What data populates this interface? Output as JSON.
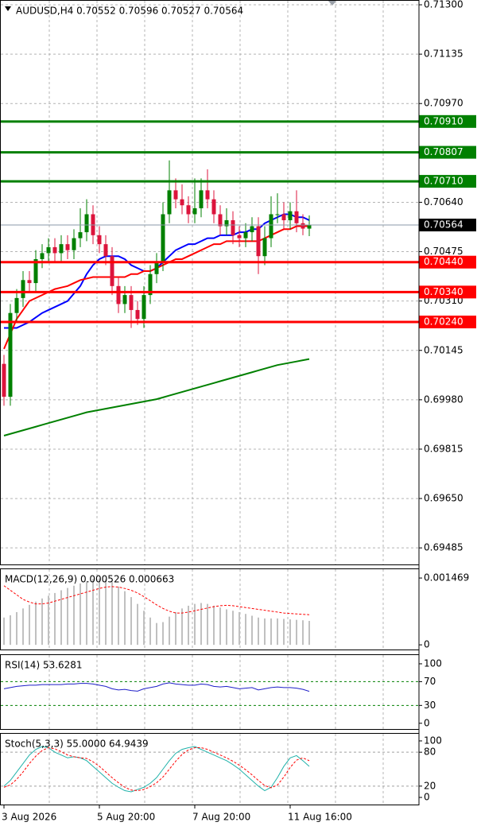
{
  "chart_data": [
    {
      "type": "candlestick",
      "title": "AUDUSD,H4  0.70552 0.70596 0.70527 0.70564",
      "categories": [
        "3 Aug 2026",
        null,
        null,
        null,
        null,
        null,
        null,
        null,
        null,
        null,
        null,
        null,
        null,
        null,
        null,
        "5 Aug 20:00",
        null,
        null,
        null,
        null,
        null,
        null,
        null,
        null,
        null,
        null,
        null,
        null,
        null,
        null,
        "7 Aug 20:00",
        null,
        null,
        null,
        null,
        null,
        null,
        null,
        null,
        null,
        null,
        null,
        null,
        null,
        null,
        "11 Aug 16:00",
        null,
        null,
        null
      ],
      "open": [
        0.701,
        0.6999,
        0.7027,
        0.7032,
        0.7038,
        0.7037,
        0.7045,
        0.7047,
        0.7049,
        0.7047,
        0.705,
        0.7048,
        0.7052,
        0.7054,
        0.706,
        0.7053,
        0.705,
        0.7046,
        0.7036,
        0.703,
        0.7033,
        0.7028,
        0.7025,
        0.7033,
        0.704,
        0.7044,
        0.706,
        0.7068,
        0.7065,
        0.7063,
        0.706,
        0.7062,
        0.7068,
        0.7065,
        0.706,
        0.7056,
        0.7058,
        0.7053,
        0.7052,
        0.7054,
        0.7056,
        0.7046,
        0.7052,
        0.706,
        0.706,
        0.7058,
        0.7061,
        0.7057,
        0.70552
      ],
      "high": [
        0.7013,
        0.703,
        0.7035,
        0.7041,
        0.7041,
        0.7048,
        0.705,
        0.7052,
        0.7052,
        0.7053,
        0.7053,
        0.7055,
        0.7062,
        0.7065,
        0.7063,
        0.7056,
        0.7053,
        0.7049,
        0.7039,
        0.7036,
        0.7036,
        0.7031,
        0.7036,
        0.7043,
        0.7047,
        0.7064,
        0.7078,
        0.7072,
        0.707,
        0.7066,
        0.7072,
        0.7072,
        0.7075,
        0.7068,
        0.7063,
        0.7062,
        0.7061,
        0.7056,
        0.7057,
        0.7059,
        0.7059,
        0.7056,
        0.7066,
        0.7067,
        0.7064,
        0.7064,
        0.7068,
        0.706,
        0.70596
      ],
      "low": [
        0.6996,
        0.6996,
        0.7024,
        0.7029,
        0.7034,
        0.7034,
        0.7042,
        0.7044,
        0.7044,
        0.7044,
        0.7045,
        0.7045,
        0.7049,
        0.7051,
        0.705,
        0.7047,
        0.7043,
        0.7033,
        0.7027,
        0.7027,
        0.7022,
        0.7023,
        0.7022,
        0.703,
        0.7037,
        0.7041,
        0.7057,
        0.7062,
        0.706,
        0.7057,
        0.7057,
        0.7059,
        0.7062,
        0.7057,
        0.7053,
        0.7053,
        0.705,
        0.7049,
        0.7049,
        0.7051,
        0.704,
        0.7043,
        0.7049,
        0.7057,
        0.7055,
        0.7055,
        0.7054,
        0.7053,
        0.70527
      ],
      "close": [
        0.6999,
        0.7027,
        0.7032,
        0.7038,
        0.7037,
        0.7045,
        0.7047,
        0.7049,
        0.7047,
        0.705,
        0.7048,
        0.7052,
        0.7054,
        0.706,
        0.7053,
        0.705,
        0.7046,
        0.7036,
        0.703,
        0.7033,
        0.7028,
        0.7025,
        0.7033,
        0.704,
        0.7044,
        0.706,
        0.7068,
        0.7065,
        0.7063,
        0.706,
        0.7062,
        0.7068,
        0.7065,
        0.706,
        0.7056,
        0.7058,
        0.7053,
        0.7052,
        0.7054,
        0.7056,
        0.7046,
        0.7052,
        0.706,
        0.706,
        0.7058,
        0.7061,
        0.7057,
        0.70552,
        0.70564
      ],
      "up_color": "#008000",
      "down_color": "#dc143c",
      "series": [
        {
          "color": "#008000",
          "values": [
            0.6986,
            0.69866,
            0.69872,
            0.69878,
            0.69884,
            0.6989,
            0.69896,
            0.69902,
            0.69908,
            0.69914,
            0.6992,
            0.69926,
            0.69932,
            0.69938,
            0.69942,
            0.69946,
            0.6995,
            0.69954,
            0.69958,
            0.69962,
            0.69966,
            0.6997,
            0.69974,
            0.69978,
            0.69982,
            0.69988,
            0.69994,
            0.7,
            0.70006,
            0.70012,
            0.70018,
            0.70024,
            0.7003,
            0.70036,
            0.70042,
            0.70048,
            0.70054,
            0.7006,
            0.70066,
            0.70072,
            0.70078,
            0.70084,
            0.7009,
            0.70096,
            0.701,
            0.70104,
            0.70108,
            0.70112,
            0.70116
          ]
        },
        {
          "color": "#0000ff",
          "values": [
            0.7022,
            0.7022,
            0.7022,
            0.7023,
            0.7024,
            0.70255,
            0.7027,
            0.7028,
            0.7029,
            0.703,
            0.7031,
            0.70335,
            0.7036,
            0.704,
            0.7043,
            0.7045,
            0.7046,
            0.7046,
            0.7046,
            0.7045,
            0.7043,
            0.7042,
            0.7041,
            0.7041,
            0.7042,
            0.7044,
            0.7046,
            0.7048,
            0.7049,
            0.705,
            0.705,
            0.7051,
            0.7052,
            0.7052,
            0.7053,
            0.7053,
            0.7053,
            0.7054,
            0.7054,
            0.7055,
            0.7055,
            0.7057,
            0.7058,
            0.7059,
            0.706,
            0.706,
            0.7059,
            0.7059,
            0.7058
          ]
        },
        {
          "color": "#ff0000",
          "values": [
            0.7015,
            0.702,
            0.7025,
            0.7028,
            0.7031,
            0.7032,
            0.7033,
            0.7034,
            0.7035,
            0.70355,
            0.7036,
            0.7037,
            0.7038,
            0.70385,
            0.7039,
            0.7039,
            0.7039,
            0.7039,
            0.7039,
            0.7039,
            0.704,
            0.704,
            0.7041,
            0.7041,
            0.7042,
            0.7043,
            0.7044,
            0.7045,
            0.7045,
            0.7046,
            0.7047,
            0.7048,
            0.7049,
            0.705,
            0.705,
            0.7051,
            0.7051,
            0.7051,
            0.7051,
            0.7051,
            0.7051,
            0.7052,
            0.7053,
            0.7054,
            0.7055,
            0.7055,
            0.7056,
            0.7056,
            0.7056
          ]
        }
      ],
      "levels": [
        {
          "value": 0.7091,
          "label": "0.70910",
          "color": "#008000"
        },
        {
          "value": 0.70807,
          "color": "#008000"
        },
        {
          "value": 0.7071,
          "label": "0.70710",
          "color": "#008000"
        },
        {
          "value": 0.7044,
          "label": "0.70440",
          "color": "#ff0000"
        },
        {
          "value": 0.7034,
          "label": "0.70340",
          "color": "#ff0000"
        },
        {
          "value": 0.7024,
          "label": "0.70240",
          "color": "#ff0000"
        }
      ],
      "last": 0.70564,
      "ylim": [
        0.69427,
        0.71316
      ],
      "yticks": [
        {
          "value": 0.713,
          "label": "0.71300"
        },
        0.71135,
        {
          "value": 0.7097,
          "label": "0.70970"
        },
        {
          "value": 0.7064,
          "label": "0.70640"
        },
        0.70475,
        {
          "value": 0.7031,
          "label": "0.70310"
        },
        0.70145,
        {
          "value": 0.6998,
          "label": "0.69980"
        },
        0.69815,
        {
          "value": 0.6965,
          "label": "0.69650"
        },
        0.69485
      ],
      "grid": true
    },
    {
      "type": "bar",
      "title": "MACD(12,26,9) 0.000526 0.000663",
      "color": "#c0c0c0",
      "values": [
        0.0006,
        0.00065,
        0.00072,
        0.0008,
        0.00088,
        0.00095,
        0.00102,
        0.00108,
        0.00114,
        0.0012,
        0.00125,
        0.0013,
        0.00135,
        0.0014,
        0.00145,
        0.00146,
        0.00144,
        0.00138,
        0.00128,
        0.00118,
        0.00105,
        0.0009,
        0.00075,
        0.0006,
        0.00048,
        0.0005,
        0.00062,
        0.00072,
        0.0008,
        0.00086,
        0.0009,
        0.00092,
        0.0009,
        0.00086,
        0.00082,
        0.00078,
        0.00075,
        0.00072,
        0.00068,
        0.00064,
        0.0006,
        0.00058,
        0.00058,
        0.00058,
        0.00057,
        0.00056,
        0.00055,
        0.00054,
        0.000526
      ],
      "series": [
        {
          "color": "#ff0000",
          "dashed": true,
          "values": [
            0.0013,
            0.0012,
            0.0011,
            0.001,
            0.00094,
            0.0009,
            0.0009,
            0.00092,
            0.00096,
            0.001,
            0.00104,
            0.00108,
            0.00112,
            0.00116,
            0.0012,
            0.00124,
            0.00127,
            0.00128,
            0.00127,
            0.00124,
            0.0012,
            0.00114,
            0.00106,
            0.00097,
            0.00088,
            0.0008,
            0.00074,
            0.0007,
            0.0007,
            0.00072,
            0.00075,
            0.00078,
            0.00081,
            0.00084,
            0.00086,
            0.00087,
            0.00086,
            0.00084,
            0.00082,
            0.0008,
            0.00078,
            0.00076,
            0.00074,
            0.00072,
            0.0007,
            0.00069,
            0.00068,
            0.00067,
            0.000663
          ]
        }
      ],
      "ylim": [
        -0.00012,
        0.00168
      ],
      "yticks": [
        0.001469,
        0
      ]
    },
    {
      "type": "line",
      "title": "RSI(14) 53.6281",
      "series": [
        {
          "color": "#1e1ec8",
          "values": [
            58,
            60,
            62,
            63,
            64,
            64,
            65,
            65,
            65,
            65,
            66,
            66,
            67,
            67,
            66,
            64,
            62,
            58,
            56,
            57,
            55,
            54,
            58,
            60,
            62,
            66,
            68,
            66,
            65,
            64,
            64,
            66,
            65,
            62,
            61,
            62,
            60,
            58,
            59,
            60,
            56,
            58,
            60,
            61,
            60,
            60,
            59,
            57,
            53.6281
          ]
        }
      ],
      "levels": [
        70,
        30
      ],
      "level_color": "#008000",
      "ylim": [
        -11,
        116
      ],
      "yticks": [
        100,
        70,
        30,
        0
      ]
    },
    {
      "type": "line",
      "title": "Stoch(5,3,3) 55.0000 64.9439",
      "series": [
        {
          "color": "#20b2aa",
          "values": [
            20,
            30,
            45,
            60,
            75,
            85,
            90,
            88,
            80,
            75,
            70,
            72,
            70,
            65,
            55,
            45,
            35,
            25,
            18,
            12,
            10,
            14,
            18,
            25,
            35,
            50,
            65,
            78,
            85,
            88,
            90,
            85,
            80,
            75,
            70,
            65,
            58,
            50,
            40,
            30,
            20,
            12,
            18,
            35,
            55,
            70,
            74,
            65,
            55
          ]
        },
        {
          "color": "#ff0000",
          "dashed": true,
          "values": [
            18,
            22,
            32,
            45,
            60,
            73,
            83,
            88,
            86,
            81,
            75,
            72,
            70,
            69,
            63,
            55,
            45,
            35,
            26,
            18,
            13,
            12,
            14,
            19,
            26,
            36,
            50,
            64,
            76,
            84,
            88,
            88,
            85,
            80,
            75,
            70,
            64,
            57,
            49,
            40,
            30,
            21,
            17,
            22,
            36,
            53,
            66,
            70,
            64.9439
          ]
        }
      ],
      "levels": [
        80,
        20
      ],
      "level_color": "#a0a0a0",
      "ylim": [
        -14,
        114
      ],
      "yticks": [
        100,
        80,
        20,
        0
      ]
    }
  ]
}
